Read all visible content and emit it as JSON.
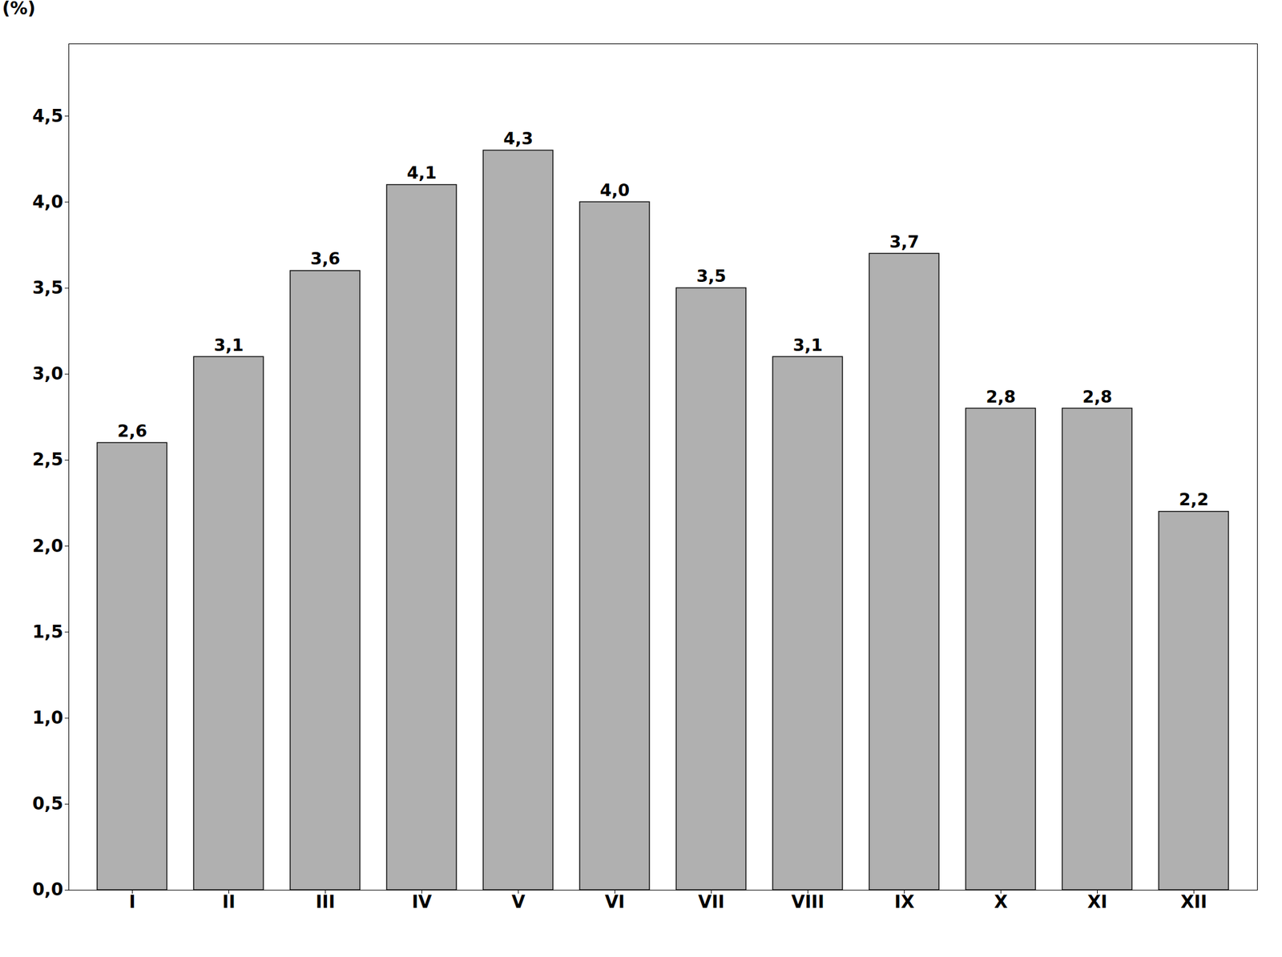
{
  "chart_data": {
    "type": "bar",
    "categories": [
      "I",
      "II",
      "III",
      "IV",
      "V",
      "VI",
      "VII",
      "VIII",
      "IX",
      "X",
      "XI",
      "XII"
    ],
    "values": [
      2.6,
      3.1,
      3.6,
      4.1,
      4.3,
      4.0,
      3.5,
      3.1,
      3.7,
      2.8,
      2.8,
      2.2
    ],
    "value_labels": [
      "2,6",
      "3,1",
      "3,6",
      "4,1",
      "4,3",
      "4,0",
      "3,5",
      "3,1",
      "3,7",
      "2,8",
      "2,8",
      "2,2"
    ],
    "data_labels": true,
    "color": "#b0b0b0",
    "ylabel": "(%)",
    "ylim": [
      0.0,
      4.92
    ],
    "yticks": [
      {
        "value": 0.0,
        "label": "0,0"
      },
      {
        "value": 0.5,
        "label": "0,5"
      },
      {
        "value": 1.0,
        "label": "1,0"
      },
      {
        "value": 1.5,
        "label": "1,5"
      },
      {
        "value": 2.0,
        "label": "2,0"
      },
      {
        "value": 2.5,
        "label": "2,5"
      },
      {
        "value": 3.0,
        "label": "3,0"
      },
      {
        "value": 3.5,
        "label": "3,5"
      },
      {
        "value": 4.0,
        "label": "4,0"
      },
      {
        "value": 4.5,
        "label": "4,5"
      }
    ],
    "grid": false
  }
}
